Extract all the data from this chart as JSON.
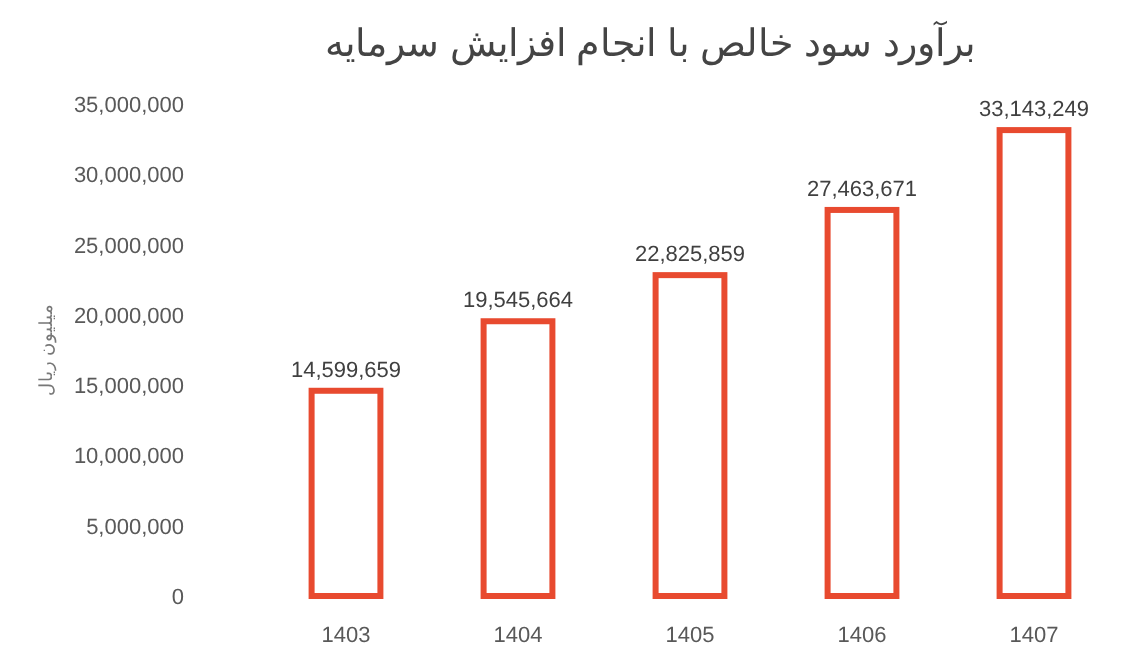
{
  "chart_data": {
    "type": "bar",
    "title": "برآورد سود خالص با انجام افزایش سرمایه",
    "ylabel": "میلیون ریال",
    "categories": [
      "1403",
      "1404",
      "1405",
      "1406",
      "1407"
    ],
    "series": [
      {
        "color": "#e84a2f",
        "values": [
          14599659,
          19545664,
          22825859,
          27463671,
          33143249
        ],
        "value_labels": [
          "14,599,659",
          "19,545,664",
          "22,825,859",
          "27,463,671",
          "33,143,249"
        ]
      }
    ],
    "ylim": [
      0,
      35000000
    ],
    "yticks": [
      {
        "value": 0,
        "label": "0"
      },
      {
        "value": 5000000,
        "label": "5,000,000"
      },
      {
        "value": 10000000,
        "label": "10,000,000"
      },
      {
        "value": 15000000,
        "label": "15,000,000"
      },
      {
        "value": 20000000,
        "label": "20,000,000"
      },
      {
        "value": 25000000,
        "label": "25,000,000"
      },
      {
        "value": 30000000,
        "label": "30,000,000"
      },
      {
        "value": 35000000,
        "label": "35,000,000"
      }
    ],
    "grid": false
  }
}
